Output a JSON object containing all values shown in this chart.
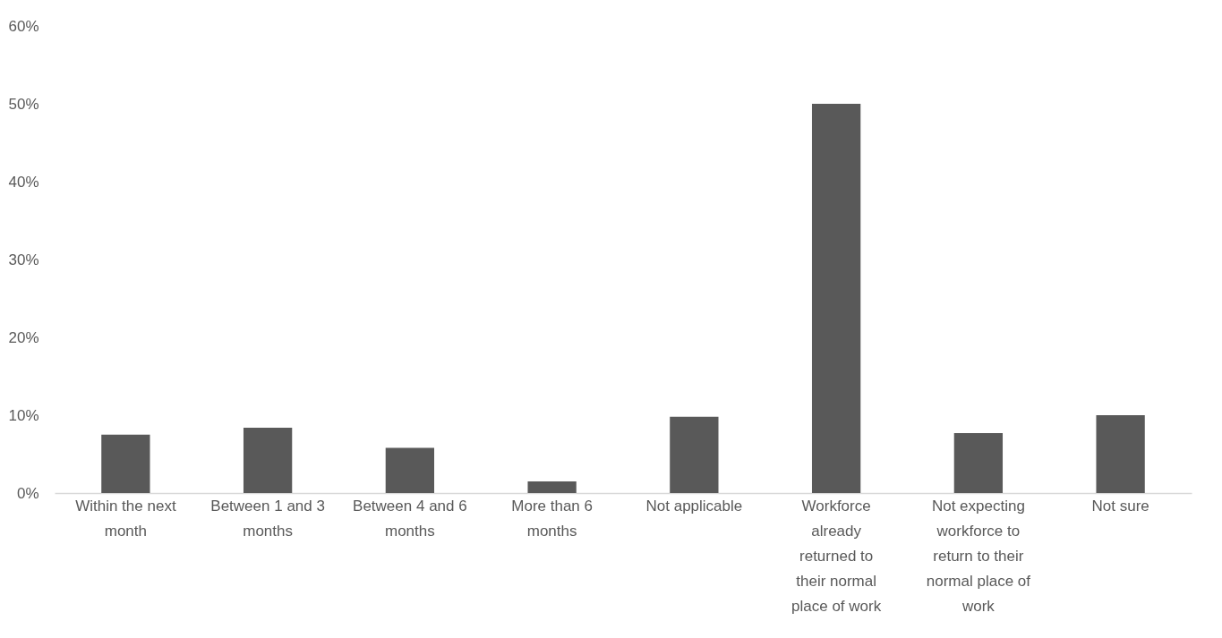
{
  "chart_data": {
    "type": "bar",
    "categories": [
      "Within the next month",
      "Between 1 and 3 months",
      "Between 4 and 6 months",
      "More than 6 months",
      "Not applicable",
      "Workforce already returned to their normal place of work",
      "Not expecting workforce to return to their normal place of work",
      "Not sure"
    ],
    "values": [
      7.5,
      8.4,
      5.8,
      1.5,
      9.8,
      50,
      7.7,
      10
    ],
    "color": "#595959",
    "ylim": [
      0,
      60
    ],
    "yticks": [
      {
        "value": 0,
        "label": "0%"
      },
      {
        "value": 10,
        "label": "10%"
      },
      {
        "value": 20,
        "label": "20%"
      },
      {
        "value": 30,
        "label": "30%"
      },
      {
        "value": 40,
        "label": "40%"
      },
      {
        "value": 50,
        "label": "50%"
      },
      {
        "value": 60,
        "label": "60%"
      }
    ],
    "grid": false
  }
}
